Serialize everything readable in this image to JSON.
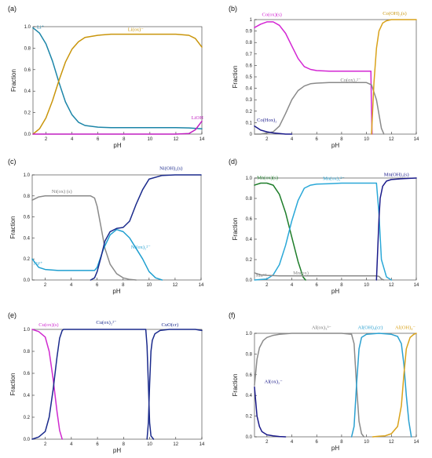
{
  "chart_data": [
    {
      "panel": "(a)",
      "type": "line",
      "xlabel": "pH",
      "ylabel": "Fraction",
      "xlim": [
        1,
        14
      ],
      "ylim": [
        0,
        1
      ],
      "xticks": [
        2,
        4,
        6,
        8,
        10,
        12,
        14
      ],
      "xtick_labels": [
        "2",
        "4",
        "6",
        "8",
        "10",
        "12",
        "14"
      ],
      "yticks": [
        0,
        0.2,
        0.4,
        0.6,
        0.8,
        1.0
      ],
      "ytick_labels": [
        "0.0",
        "0.2",
        "0.4",
        "0.6",
        "0.8",
        "1.0"
      ],
      "series": [
        {
          "color": "#1b85a8",
          "x": [
            1,
            1.5,
            2,
            2.5,
            3,
            3.5,
            4,
            4.5,
            5,
            6,
            7,
            8,
            9,
            10,
            11,
            12,
            13,
            14
          ],
          "y": [
            0.99,
            0.94,
            0.84,
            0.68,
            0.48,
            0.3,
            0.18,
            0.11,
            0.08,
            0.065,
            0.06,
            0.06,
            0.06,
            0.06,
            0.06,
            0.06,
            0.058,
            0.05
          ]
        },
        {
          "color": "#c9950b",
          "x": [
            1,
            1.5,
            2,
            2.5,
            3,
            3.5,
            4,
            4.5,
            5,
            6,
            7,
            8,
            9,
            10,
            11,
            12,
            13,
            13.5,
            14
          ],
          "y": [
            0.0,
            0.05,
            0.15,
            0.31,
            0.5,
            0.67,
            0.79,
            0.86,
            0.9,
            0.92,
            0.93,
            0.93,
            0.93,
            0.93,
            0.93,
            0.93,
            0.92,
            0.89,
            0.81
          ]
        },
        {
          "color": "#c01ec0",
          "x": [
            1,
            4,
            8,
            12,
            13,
            13.5,
            14
          ],
          "y": [
            0,
            0,
            0,
            0,
            0.005,
            0.04,
            0.12
          ]
        }
      ],
      "annotations": [
        {
          "text": "Li⁺",
          "x": 1.3,
          "y": 0.98,
          "color": "#1b85a8"
        },
        {
          "text": "Li(ox)⁻",
          "x": 8.3,
          "y": 0.96,
          "color": "#c9950b"
        },
        {
          "text": "LiOH",
          "x": 13.2,
          "y": 0.14,
          "color": "#c01ec0"
        }
      ]
    },
    {
      "panel": "(b)",
      "type": "line",
      "xlabel": "pH",
      "ylabel": "Fraction",
      "xlim": [
        1,
        14
      ],
      "ylim": [
        0,
        1
      ],
      "xticks": [
        2,
        4,
        6,
        8,
        10,
        12,
        14
      ],
      "xtick_labels": [
        "2",
        "4",
        "6",
        "8",
        "10",
        "12",
        "14"
      ],
      "yticks": [
        0,
        0.1,
        0.2,
        0.3,
        0.4,
        0.5,
        0.6,
        0.7,
        0.8,
        0.9,
        1.0
      ],
      "ytick_labels": [
        "0",
        "0.1",
        "0.2",
        "0.3",
        "0.4",
        "0.5",
        "0.6",
        "0.7",
        "0.8",
        "0.9",
        "1"
      ],
      "series": [
        {
          "color": "#d326d3",
          "x": [
            1,
            1.5,
            2,
            2.5,
            3,
            3.5,
            4,
            4.5,
            5,
            5.5,
            6,
            7,
            8,
            9,
            10,
            10.35,
            10.4,
            10.45
          ],
          "y": [
            0.93,
            0.96,
            0.98,
            0.98,
            0.95,
            0.88,
            0.77,
            0.66,
            0.59,
            0.565,
            0.555,
            0.55,
            0.55,
            0.55,
            0.55,
            0.55,
            0.2,
            0.0
          ]
        },
        {
          "color": "#8a8a8a",
          "x": [
            1,
            1.5,
            2,
            2.5,
            3,
            3.5,
            4,
            4.5,
            5,
            5.5,
            6,
            7,
            8,
            9,
            10,
            10.4,
            10.8,
            11.2,
            11.4
          ],
          "y": [
            0.0,
            0.0,
            0.01,
            0.02,
            0.07,
            0.18,
            0.3,
            0.38,
            0.42,
            0.44,
            0.445,
            0.45,
            0.45,
            0.45,
            0.45,
            0.43,
            0.3,
            0.05,
            0.0
          ]
        },
        {
          "color": "#1a1a8a",
          "x": [
            1,
            1.5,
            2,
            2.5,
            3,
            3.5,
            4
          ],
          "y": [
            0.07,
            0.035,
            0.02,
            0.01,
            0.005,
            0.0,
            0.0
          ]
        },
        {
          "color": "#d9a21a",
          "x": [
            10.4,
            10.6,
            10.8,
            11,
            11.3,
            11.6,
            12,
            13,
            14
          ],
          "y": [
            0.0,
            0.45,
            0.75,
            0.9,
            0.97,
            0.99,
            1.0,
            1.0,
            1.0
          ]
        }
      ],
      "annotations": [
        {
          "text": "Co(ox)(s)",
          "x": 1.6,
          "y": 1.03,
          "color": "#d326d3"
        },
        {
          "text": "Co(OH)₂(s)",
          "x": 11.3,
          "y": 1.04,
          "color": "#c9950b"
        },
        {
          "text": "Co(ox)₂²⁻",
          "x": 7.9,
          "y": 0.46,
          "color": "#777777"
        },
        {
          "text": "Co(Hox)₂",
          "x": 1.2,
          "y": 0.11,
          "color": "#1a1a8a"
        }
      ]
    },
    {
      "panel": "(c)",
      "type": "line",
      "xlabel": "pH",
      "ylabel": "Fraction",
      "xlim": [
        1,
        14
      ],
      "ylim": [
        0,
        1
      ],
      "xticks": [
        2,
        4,
        6,
        8,
        10,
        12,
        14
      ],
      "xtick_labels": [
        "2",
        "4",
        "6",
        "8",
        "10",
        "12",
        "14"
      ],
      "yticks": [
        0,
        0.2,
        0.4,
        0.6,
        0.8,
        1.0
      ],
      "ytick_labels": [
        "0.0",
        "0.2",
        "0.4",
        "0.6",
        "0.8",
        "1.0"
      ],
      "series": [
        {
          "color": "#8a8a8a",
          "x": [
            1,
            1.5,
            2,
            3,
            4,
            5,
            5.5,
            5.8,
            6,
            6.3,
            6.6,
            7,
            7.5,
            8,
            8.5,
            9
          ],
          "y": [
            0.76,
            0.79,
            0.8,
            0.8,
            0.8,
            0.8,
            0.8,
            0.78,
            0.7,
            0.5,
            0.3,
            0.15,
            0.06,
            0.02,
            0.005,
            0.0
          ]
        },
        {
          "color": "#1f9fd0",
          "x": [
            1,
            1.5,
            2,
            3,
            4,
            5,
            5.8,
            6,
            6.5,
            7,
            7.5,
            8,
            8.5,
            9,
            9.5,
            10,
            10.5,
            11
          ],
          "y": [
            0.2,
            0.12,
            0.1,
            0.09,
            0.09,
            0.09,
            0.09,
            0.12,
            0.3,
            0.43,
            0.48,
            0.46,
            0.4,
            0.3,
            0.2,
            0.08,
            0.02,
            0.0
          ]
        },
        {
          "color": "#1a2a8c",
          "x": [
            5.5,
            5.8,
            6,
            6.3,
            6.6,
            7,
            7.5,
            8,
            8.5,
            9,
            9.5,
            10,
            11,
            12,
            14
          ],
          "y": [
            0.0,
            0.02,
            0.08,
            0.22,
            0.37,
            0.46,
            0.49,
            0.5,
            0.56,
            0.72,
            0.86,
            0.96,
            0.995,
            1.0,
            1.0
          ]
        }
      ],
      "annotations": [
        {
          "text": "Ni(OH)₂(s)",
          "x": 10.8,
          "y": 1.05,
          "color": "#1a2a8c"
        },
        {
          "text": "Ni(ox) (s)",
          "x": 2.5,
          "y": 0.83,
          "color": "#777777"
        },
        {
          "text": "Ni²⁺",
          "x": 1.1,
          "y": 0.14,
          "color": "#1f9fd0"
        },
        {
          "text": "Ni(ox)₂²⁻",
          "x": 8.6,
          "y": 0.3,
          "color": "#1f9fd0"
        }
      ]
    },
    {
      "panel": "(d)",
      "type": "line",
      "xlabel": "pH",
      "ylabel": "Fraction",
      "xlim": [
        1,
        14
      ],
      "ylim": [
        0,
        1
      ],
      "xticks": [
        2,
        4,
        6,
        8,
        10,
        12,
        14
      ],
      "xtick_labels": [
        "2",
        "4",
        "6",
        "8",
        "10",
        "12",
        "14"
      ],
      "yticks": [
        0,
        0.2,
        0.4,
        0.6,
        0.8,
        1.0
      ],
      "ytick_labels": [
        "0.0",
        "0.2",
        "0.4",
        "0.6",
        "0.8",
        "1.0"
      ],
      "series": [
        {
          "color": "#1e7d2a",
          "x": [
            1,
            1.5,
            2,
            2.5,
            3,
            3.5,
            4,
            4.5,
            4.9,
            5.1
          ],
          "y": [
            0.93,
            0.95,
            0.95,
            0.93,
            0.84,
            0.66,
            0.42,
            0.18,
            0.03,
            0.0
          ]
        },
        {
          "color": "#2aa8d8",
          "x": [
            1,
            1.5,
            2,
            2.5,
            3,
            3.5,
            4,
            4.5,
            5,
            5.5,
            6,
            7,
            8,
            9,
            10,
            10.8,
            11,
            11.2,
            11.6,
            12
          ],
          "y": [
            0.0,
            0.005,
            0.01,
            0.05,
            0.15,
            0.34,
            0.58,
            0.78,
            0.9,
            0.93,
            0.94,
            0.945,
            0.95,
            0.95,
            0.95,
            0.95,
            0.65,
            0.2,
            0.03,
            0.0
          ]
        },
        {
          "color": "#8a8a8a",
          "x": [
            1,
            1.5,
            2,
            3,
            4,
            5,
            6,
            8,
            10,
            10.8,
            11,
            11.2,
            11.4
          ],
          "y": [
            0.07,
            0.05,
            0.045,
            0.04,
            0.04,
            0.04,
            0.04,
            0.04,
            0.04,
            0.04,
            0.035,
            0.01,
            0.0
          ]
        },
        {
          "color": "#1a1a8a",
          "x": [
            10.8,
            10.9,
            11,
            11.1,
            11.3,
            11.6,
            12,
            13,
            14
          ],
          "y": [
            0.0,
            0.3,
            0.6,
            0.8,
            0.92,
            0.97,
            0.985,
            0.995,
            1.0
          ]
        }
      ],
      "annotations": [
        {
          "text": "Mn(ox)(s)",
          "x": 1.2,
          "y": 0.99,
          "color": "#1e7d2a"
        },
        {
          "text": "Mn(ox)₂²⁻",
          "x": 6.5,
          "y": 0.98,
          "color": "#2aa8d8"
        },
        {
          "text": "Mn(OH)₂(s)",
          "x": 11.4,
          "y": 1.02,
          "color": "#1a1a8a"
        },
        {
          "text": "Mn²⁺",
          "x": 1.1,
          "y": 0.03,
          "color": "#8a8a8a"
        },
        {
          "text": "Mn(ox)",
          "x": 4.1,
          "y": 0.055,
          "color": "#8a8a8a"
        }
      ]
    },
    {
      "panel": "(e)",
      "type": "line",
      "xlabel": "pH",
      "ylabel": "Fraction",
      "xlim": [
        1,
        14
      ],
      "ylim": [
        0,
        1
      ],
      "xticks": [
        2,
        4,
        6,
        8,
        10,
        12,
        14
      ],
      "xtick_labels": [
        "2",
        "4",
        "6",
        "8",
        "10",
        "12",
        "14"
      ],
      "yticks": [
        0,
        0.2,
        0.4,
        0.6,
        0.8,
        1.0
      ],
      "ytick_labels": [
        "0.0",
        "0.2",
        "0.4",
        "0.6",
        "0.8",
        "1.0"
      ],
      "series": [
        {
          "color": "#d02ad0",
          "x": [
            1,
            1.5,
            2,
            2.3,
            2.6,
            2.9,
            3.1,
            3.3
          ],
          "y": [
            1.0,
            0.98,
            0.93,
            0.8,
            0.55,
            0.25,
            0.08,
            0.0
          ]
        },
        {
          "color": "#1a2a8c",
          "x": [
            1,
            1.5,
            2,
            2.3,
            2.6,
            2.9,
            3.1,
            3.3,
            3.4,
            4,
            6,
            8,
            9.7,
            9.8,
            9.9,
            10.0,
            10.1,
            10.3
          ],
          "y": [
            0.0,
            0.02,
            0.07,
            0.2,
            0.45,
            0.75,
            0.92,
            0.99,
            1.0,
            1.0,
            1.0,
            1.0,
            1.0,
            0.85,
            0.5,
            0.15,
            0.03,
            0.0
          ]
        },
        {
          "color": "#1a2a8c",
          "x": [
            9.8,
            9.9,
            10,
            10.1,
            10.2,
            10.4,
            10.8,
            11.5,
            12.5,
            13.5,
            14
          ],
          "y": [
            0.0,
            0.15,
            0.5,
            0.8,
            0.9,
            0.96,
            0.99,
            1.0,
            1.0,
            1.0,
            0.99
          ]
        }
      ],
      "annotations": [
        {
          "text": "Cu(ox)(s)",
          "x": 1.5,
          "y": 1.03,
          "color": "#d02ad0"
        },
        {
          "text": "Cu(ox)₂²⁻",
          "x": 5.9,
          "y": 1.05,
          "color": "#1a2a8c"
        },
        {
          "text": "CuO(cr)",
          "x": 10.9,
          "y": 1.03,
          "color": "#1a2a8c"
        }
      ]
    },
    {
      "panel": "(f)",
      "type": "line",
      "xlabel": "pH",
      "ylabel": "Fraction",
      "xlim": [
        1,
        14
      ],
      "ylim": [
        0,
        1
      ],
      "xticks": [
        2,
        4,
        6,
        8,
        10,
        12,
        14
      ],
      "xtick_labels": [
        "2",
        "4",
        "6",
        "8",
        "10",
        "12",
        "14"
      ],
      "yticks": [
        0,
        0.2,
        0.4,
        0.6,
        0.8,
        1.0
      ],
      "ytick_labels": [
        "0.0",
        "0.2",
        "0.4",
        "0.6",
        "0.8",
        "1.0"
      ],
      "series": [
        {
          "color": "#1a1a8a",
          "x": [
            1,
            1.2,
            1.4,
            1.6,
            2,
            2.5,
            3,
            3.5
          ],
          "y": [
            0.48,
            0.2,
            0.1,
            0.05,
            0.02,
            0.01,
            0.003,
            0.0
          ]
        },
        {
          "color": "#8a8a8a",
          "x": [
            1,
            1.2,
            1.4,
            1.7,
            2,
            2.5,
            3,
            4,
            6,
            8,
            8.8,
            9.0,
            9.2,
            9.4,
            9.6,
            9.8
          ],
          "y": [
            0.5,
            0.75,
            0.86,
            0.93,
            0.96,
            0.98,
            0.99,
            1.0,
            1.0,
            1.0,
            0.99,
            0.9,
            0.5,
            0.15,
            0.03,
            0.0
          ]
        },
        {
          "color": "#2aa0d0",
          "x": [
            8.8,
            9.0,
            9.2,
            9.4,
            9.6,
            10,
            11,
            12,
            12.5,
            12.8,
            13,
            13.2,
            13.4,
            13.6
          ],
          "y": [
            0.0,
            0.1,
            0.5,
            0.85,
            0.96,
            0.99,
            1.0,
            0.99,
            0.97,
            0.9,
            0.7,
            0.4,
            0.15,
            0.0
          ]
        },
        {
          "color": "#d9a21a",
          "x": [
            10.5,
            11,
            11.5,
            12,
            12.5,
            12.8,
            13,
            13.2,
            13.5,
            13.8,
            14
          ],
          "y": [
            0.0,
            0.005,
            0.01,
            0.03,
            0.1,
            0.3,
            0.6,
            0.85,
            0.96,
            0.99,
            1.0
          ]
        }
      ],
      "annotations": [
        {
          "text": "Al(ox)₃³⁻",
          "x": 5.6,
          "y": 1.04,
          "color": "#777777"
        },
        {
          "text": "Al(OH)₃(cr)",
          "x": 9.3,
          "y": 1.04,
          "color": "#2aa0d0"
        },
        {
          "text": "Al(OH)₄⁻",
          "x": 12.3,
          "y": 1.04,
          "color": "#d9a21a"
        },
        {
          "text": "Al(ox)₂⁻",
          "x": 1.8,
          "y": 0.52,
          "color": "#1a1a8a"
        }
      ]
    }
  ]
}
